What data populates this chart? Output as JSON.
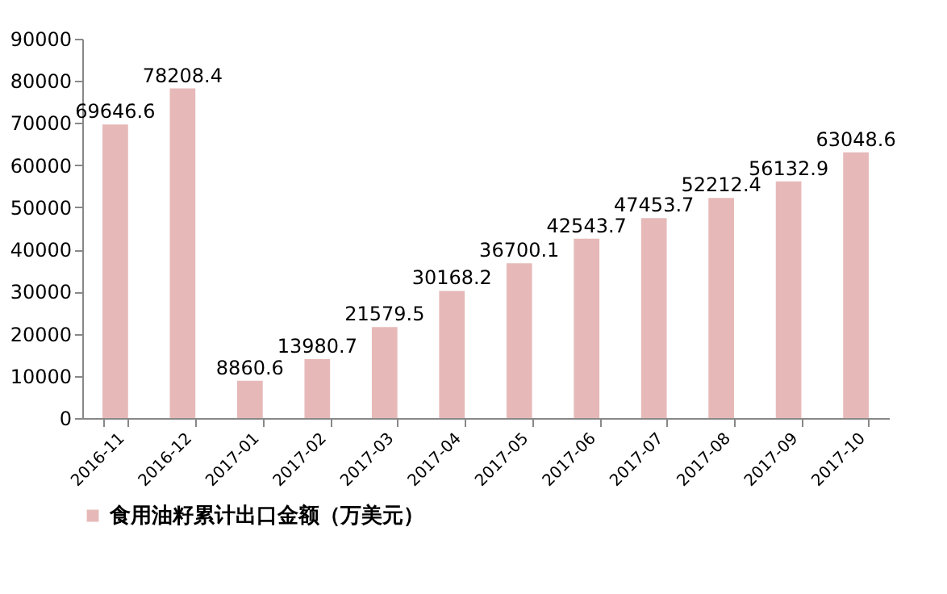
{
  "chart_data": {
    "type": "bar",
    "categories": [
      "2016-11",
      "2016-12",
      "2017-01",
      "2017-02",
      "2017-03",
      "2017-04",
      "2017-05",
      "2017-06",
      "2017-07",
      "2017-08",
      "2017-09",
      "2017-10"
    ],
    "series": [
      {
        "name": "食用油籽累计出口金额（万美元）",
        "color": "#e6b9b8",
        "values": [
          69646.6,
          78208.4,
          8860.6,
          13980.7,
          21579.5,
          30168.2,
          36700.1,
          42543.7,
          47453.7,
          52212.4,
          56132.9,
          63048.6
        ]
      }
    ],
    "ylim": [
      0,
      90000
    ],
    "yticks": [
      0,
      10000,
      20000,
      30000,
      40000,
      50000,
      60000,
      70000,
      80000,
      90000
    ],
    "data_labels": true,
    "grid": false,
    "legend": "bottom left"
  }
}
